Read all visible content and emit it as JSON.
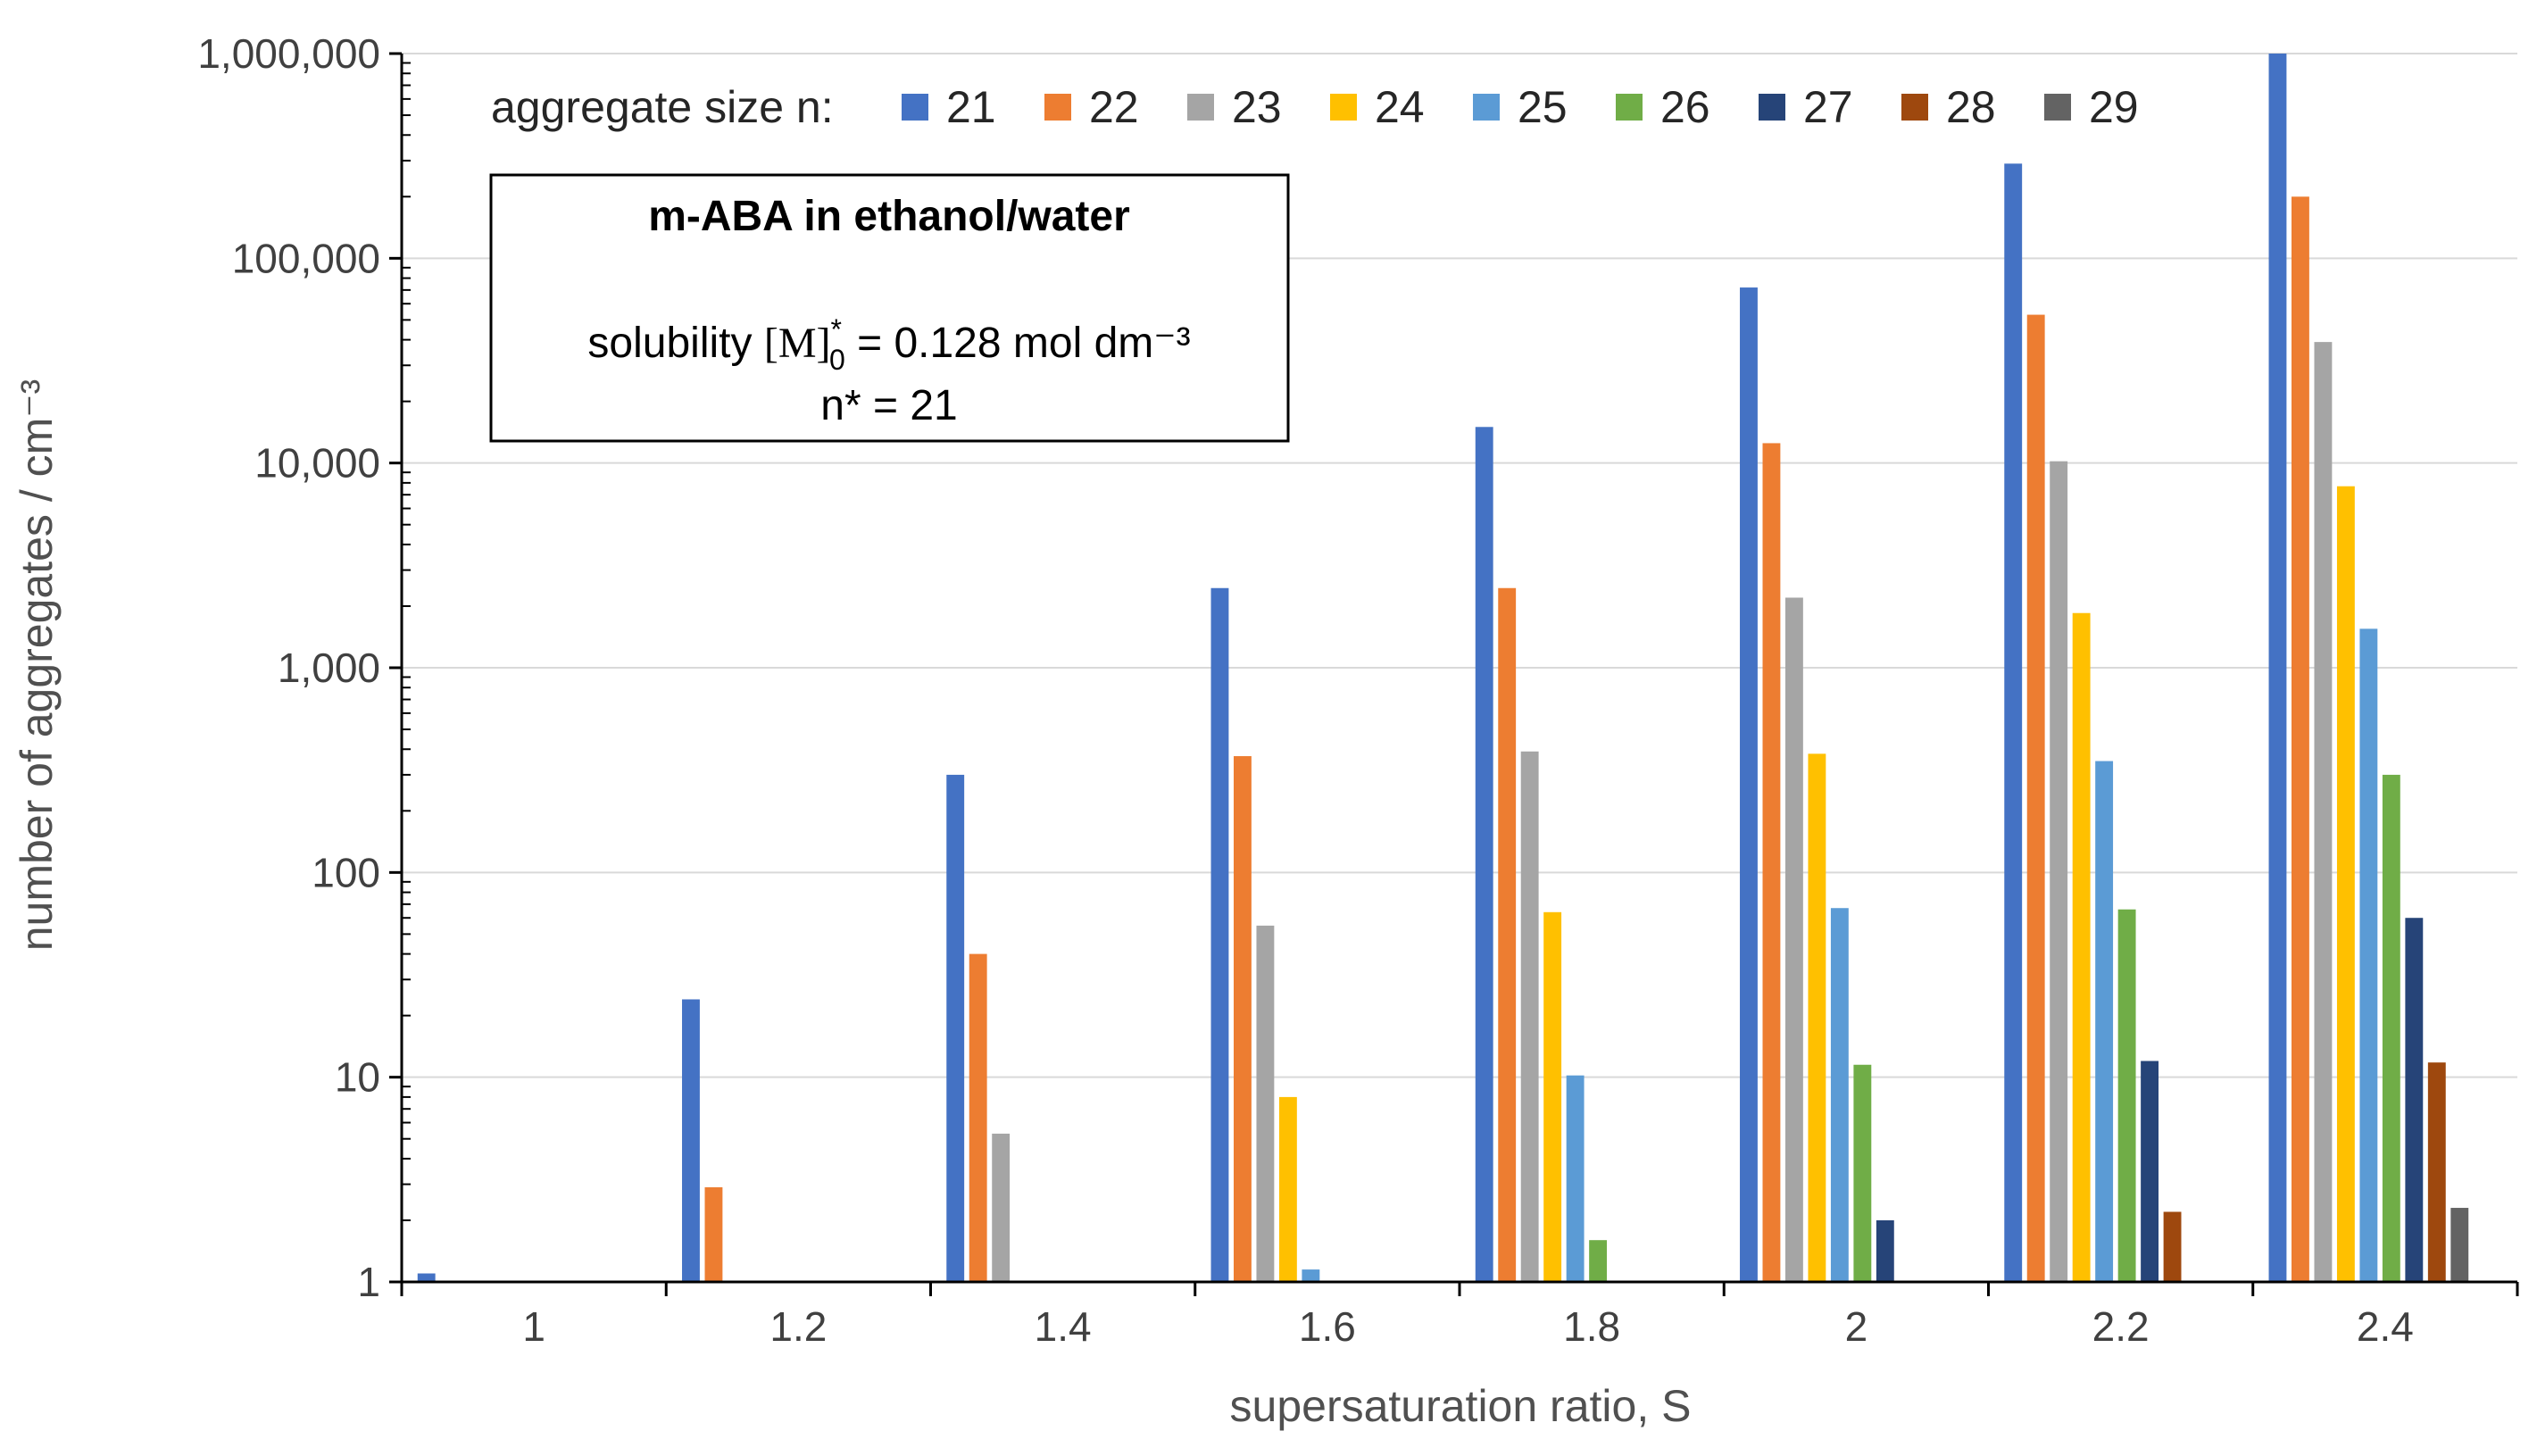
{
  "chart_data": {
    "type": "bar",
    "yscale": "log",
    "ylim": [
      1,
      1000000
    ],
    "ylabel": "number of aggregates / cm⁻³",
    "xlabel": "supersaturation ratio, S",
    "y_tick_labels": [
      "1",
      "10",
      "100",
      "1,000",
      "10,000",
      "100,000",
      "1,000,000"
    ],
    "y_tick_values": [
      1,
      10,
      100,
      1000,
      10000,
      100000,
      1000000
    ],
    "categories": [
      "1",
      "1.2",
      "1.4",
      "1.6",
      "1.8",
      "2",
      "2.2",
      "2.4"
    ],
    "legend_title": "aggregate size n:",
    "series": [
      {
        "name": "21",
        "color": "#4472c4",
        "values": [
          1.1,
          24,
          300,
          2450,
          15000,
          72000,
          290000,
          1000000
        ]
      },
      {
        "name": "22",
        "color": "#ed7d31",
        "values": [
          null,
          2.9,
          40,
          370,
          2450,
          12500,
          53000,
          200000
        ]
      },
      {
        "name": "23",
        "color": "#a5a5a5",
        "values": [
          null,
          null,
          5.3,
          55,
          390,
          2200,
          10200,
          39000
        ]
      },
      {
        "name": "24",
        "color": "#ffc000",
        "values": [
          null,
          null,
          null,
          8,
          64,
          380,
          1850,
          7700
        ]
      },
      {
        "name": "25",
        "color": "#5b9bd5",
        "values": [
          null,
          null,
          null,
          1.15,
          10.2,
          67,
          350,
          1550
        ]
      },
      {
        "name": "26",
        "color": "#70ad47",
        "values": [
          null,
          null,
          null,
          null,
          1.6,
          11.5,
          66,
          300
        ]
      },
      {
        "name": "27",
        "color": "#264478",
        "values": [
          null,
          null,
          null,
          null,
          null,
          2.0,
          12,
          60
        ]
      },
      {
        "name": "28",
        "color": "#9e480e",
        "values": [
          null,
          null,
          null,
          null,
          null,
          null,
          2.2,
          11.8
        ]
      },
      {
        "name": "29",
        "color": "#636363",
        "values": [
          null,
          null,
          null,
          null,
          null,
          null,
          null,
          2.3
        ]
      }
    ],
    "annotation": {
      "title": "m-ABA in ethanol/water",
      "solubility_prefix": "solubility ",
      "solubility_symbol": "[M]",
      "solubility_sup": "*",
      "solubility_sub": "0",
      "solubility_suffix": " = 0.128 mol dm⁻³",
      "critical_size": "n* = 21"
    }
  }
}
